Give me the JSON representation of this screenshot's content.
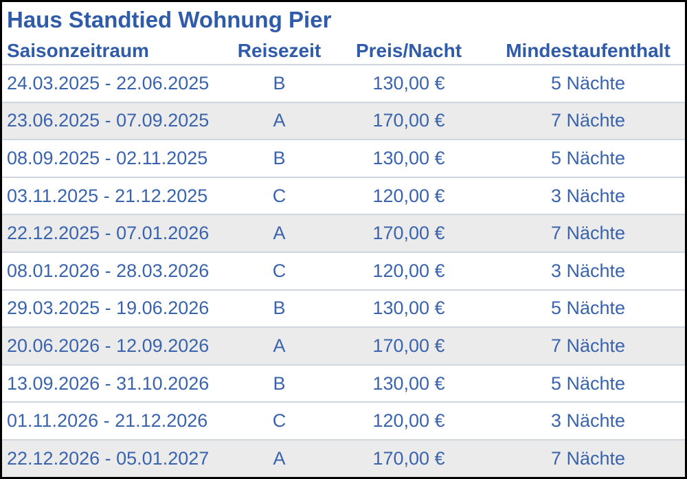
{
  "window": {
    "title": "Haus Standtied Wohnung Pier"
  },
  "table": {
    "columns": [
      "Saisonzeitraum",
      "Reisezeit",
      "Preis/Nacht",
      "Mindestaufenthalt"
    ],
    "rows": [
      {
        "saison": "24.03.2025 - 22.06.2025",
        "reisezeit": "B",
        "preis": "130,00 €",
        "mindestaufenthalt": "5 Nächte",
        "striped": false
      },
      {
        "saison": "23.06.2025 - 07.09.2025",
        "reisezeit": "A",
        "preis": "170,00 €",
        "mindestaufenthalt": "7 Nächte",
        "striped": true
      },
      {
        "saison": "08.09.2025 - 02.11.2025",
        "reisezeit": "B",
        "preis": "130,00 €",
        "mindestaufenthalt": "5 Nächte",
        "striped": false
      },
      {
        "saison": "03.11.2025 - 21.12.2025",
        "reisezeit": "C",
        "preis": "120,00 €",
        "mindestaufenthalt": "3 Nächte",
        "striped": false
      },
      {
        "saison": "22.12.2025 - 07.01.2026",
        "reisezeit": "A",
        "preis": "170,00 €",
        "mindestaufenthalt": "7 Nächte",
        "striped": true
      },
      {
        "saison": "08.01.2026 - 28.03.2026",
        "reisezeit": "C",
        "preis": "120,00 €",
        "mindestaufenthalt": "3 Nächte",
        "striped": false
      },
      {
        "saison": "29.03.2025 - 19.06.2026",
        "reisezeit": "B",
        "preis": "130,00 €",
        "mindestaufenthalt": "5 Nächte",
        "striped": false
      },
      {
        "saison": "20.06.2026 - 12.09.2026",
        "reisezeit": "A",
        "preis": "170,00 €",
        "mindestaufenthalt": "7 Nächte",
        "striped": true
      },
      {
        "saison": "13.09.2026 - 31.10.2026",
        "reisezeit": "B",
        "preis": "130,00 €",
        "mindestaufenthalt": "5 Nächte",
        "striped": false
      },
      {
        "saison": "01.11.2026 - 21.12.2026",
        "reisezeit": "C",
        "preis": "120,00 €",
        "mindestaufenthalt": "3 Nächte",
        "striped": false
      },
      {
        "saison": "22.12.2026 - 05.01.2027",
        "reisezeit": "A",
        "preis": "170,00 €",
        "mindestaufenthalt": "7 Nächte",
        "striped": true
      }
    ]
  },
  "colors": {
    "heading_blue": "#2F5BA9",
    "text_blue": "#3A63AE",
    "stripe_gray": "#EBEBEB",
    "separator": "#CFD6DF",
    "frame_border": "#000000"
  }
}
